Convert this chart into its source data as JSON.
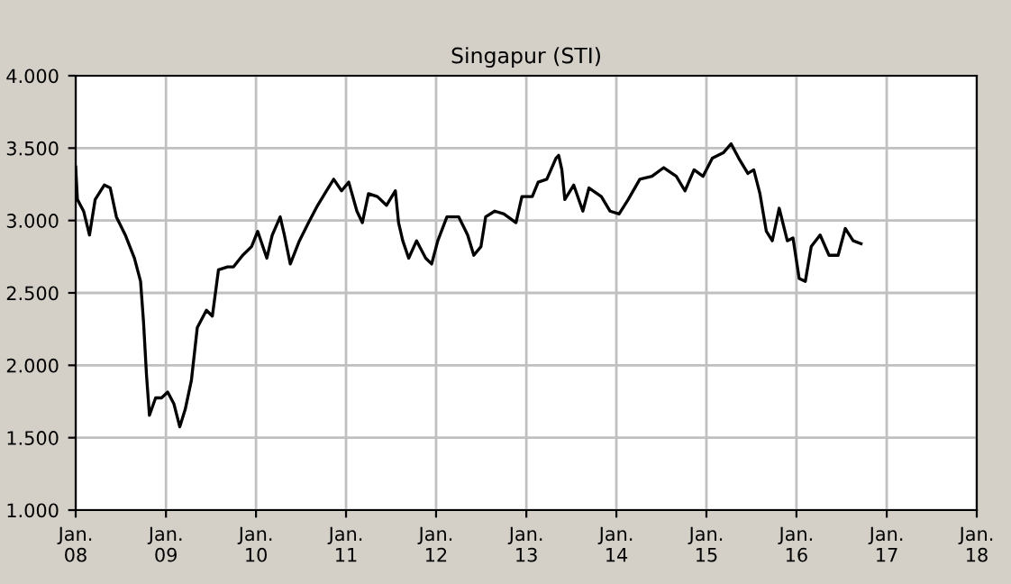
{
  "chart_data": {
    "type": "line",
    "title": "Singapur (STI)",
    "x": [
      "2008-01-01",
      "2008-01-08",
      "2008-02-02",
      "2008-02-26",
      "2008-03-20",
      "2008-04-26",
      "2008-05-20",
      "2008-06-14",
      "2008-07-20",
      "2008-08-26",
      "2008-09-20",
      "2008-10-02",
      "2008-10-14",
      "2008-10-26",
      "2008-11-20",
      "2008-12-14",
      "2009-01-08",
      "2009-02-02",
      "2009-02-26",
      "2009-03-20",
      "2009-04-14",
      "2009-05-08",
      "2009-06-14",
      "2009-07-08",
      "2009-08-02",
      "2009-09-08",
      "2009-10-02",
      "2009-11-08",
      "2009-12-14",
      "2010-01-08",
      "2010-02-14",
      "2010-03-08",
      "2010-04-09",
      "2010-04-26",
      "2010-05-20",
      "2010-06-26",
      "2010-08-02",
      "2010-09-08",
      "2010-10-14",
      "2010-11-12",
      "2010-12-14",
      "2011-01-12",
      "2011-02-14",
      "2011-03-08",
      "2011-04-02",
      "2011-05-08",
      "2011-06-14",
      "2011-07-20",
      "2011-08-02",
      "2011-08-19",
      "2011-09-12",
      "2011-10-14",
      "2011-11-20",
      "2011-12-14",
      "2012-01-08",
      "2012-02-14",
      "2012-04-02",
      "2012-05-08",
      "2012-06-02",
      "2012-07-01",
      "2012-07-20",
      "2012-08-26",
      "2012-10-02",
      "2012-11-20",
      "2012-12-14",
      "2013-01-25",
      "2013-02-18",
      "2013-03-25",
      "2013-05-01",
      "2013-05-12",
      "2013-05-25",
      "2013-06-06",
      "2013-07-12",
      "2013-08-18",
      "2013-09-12",
      "2013-11-01",
      "2013-12-06",
      "2014-01-12",
      "2014-02-18",
      "2014-04-06",
      "2014-05-25",
      "2014-07-12",
      "2014-09-01",
      "2014-10-06",
      "2014-11-12",
      "2014-12-18",
      "2015-01-25",
      "2015-03-12",
      "2015-04-11",
      "2015-05-12",
      "2015-06-18",
      "2015-07-12",
      "2015-08-06",
      "2015-09-01",
      "2015-09-25",
      "2015-10-23",
      "2015-11-25",
      "2015-12-18",
      "2016-01-12",
      "2016-02-06",
      "2016-03-01",
      "2016-04-06",
      "2016-05-12",
      "2016-06-18",
      "2016-07-17",
      "2016-08-18",
      "2016-09-19"
    ],
    "series": [
      {
        "color": "#000000",
        "values": [
          3370,
          3145,
          3065,
          2900,
          3145,
          3245,
          3225,
          3025,
          2900,
          2740,
          2580,
          2300,
          1935,
          1655,
          1775,
          1775,
          1815,
          1735,
          1575,
          1695,
          1895,
          2260,
          2380,
          2340,
          2660,
          2680,
          2680,
          2760,
          2820,
          2925,
          2740,
          2900,
          3025,
          2900,
          2700,
          2860,
          2985,
          3105,
          3205,
          3285,
          3205,
          3265,
          3065,
          2985,
          3185,
          3165,
          3105,
          3205,
          2985,
          2860,
          2740,
          2860,
          2740,
          2700,
          2860,
          3025,
          3025,
          2900,
          2760,
          2820,
          3025,
          3065,
          3045,
          2985,
          3165,
          3165,
          3265,
          3285,
          3430,
          3450,
          3350,
          3145,
          3245,
          3065,
          3225,
          3165,
          3065,
          3045,
          3145,
          3285,
          3305,
          3365,
          3305,
          3205,
          3350,
          3305,
          3430,
          3470,
          3530,
          3430,
          3325,
          3350,
          3185,
          2925,
          2860,
          3085,
          2860,
          2880,
          2600,
          2580,
          2820,
          2900,
          2760,
          2760,
          2945,
          2860,
          2840
        ]
      }
    ],
    "xlim": [
      "2008-01-01",
      "2018-01-01"
    ],
    "xticks": [
      {
        "value": "2008-01-01",
        "label": "Jan.\n08"
      },
      {
        "value": "2009-01-01",
        "label": "Jan.\n09"
      },
      {
        "value": "2010-01-01",
        "label": "Jan.\n10"
      },
      {
        "value": "2011-01-01",
        "label": "Jan.\n11"
      },
      {
        "value": "2012-01-01",
        "label": "Jan.\n12"
      },
      {
        "value": "2013-01-01",
        "label": "Jan.\n13"
      },
      {
        "value": "2014-01-01",
        "label": "Jan.\n14"
      },
      {
        "value": "2015-01-01",
        "label": "Jan.\n15"
      },
      {
        "value": "2016-01-01",
        "label": "Jan.\n16"
      },
      {
        "value": "2017-01-01",
        "label": "Jan.\n17"
      },
      {
        "value": "2018-01-01",
        "label": "Jan.\n18"
      }
    ],
    "ylim": [
      1000,
      4000
    ],
    "yticks": [
      {
        "value": 1000,
        "label": "1.000"
      },
      {
        "value": 1500,
        "label": "1.500"
      },
      {
        "value": 2000,
        "label": "2.000"
      },
      {
        "value": 2500,
        "label": "2.500"
      },
      {
        "value": 3000,
        "label": "3.000"
      },
      {
        "value": 3500,
        "label": "3.500"
      },
      {
        "value": 4000,
        "label": "4.000"
      }
    ],
    "grid": true
  }
}
